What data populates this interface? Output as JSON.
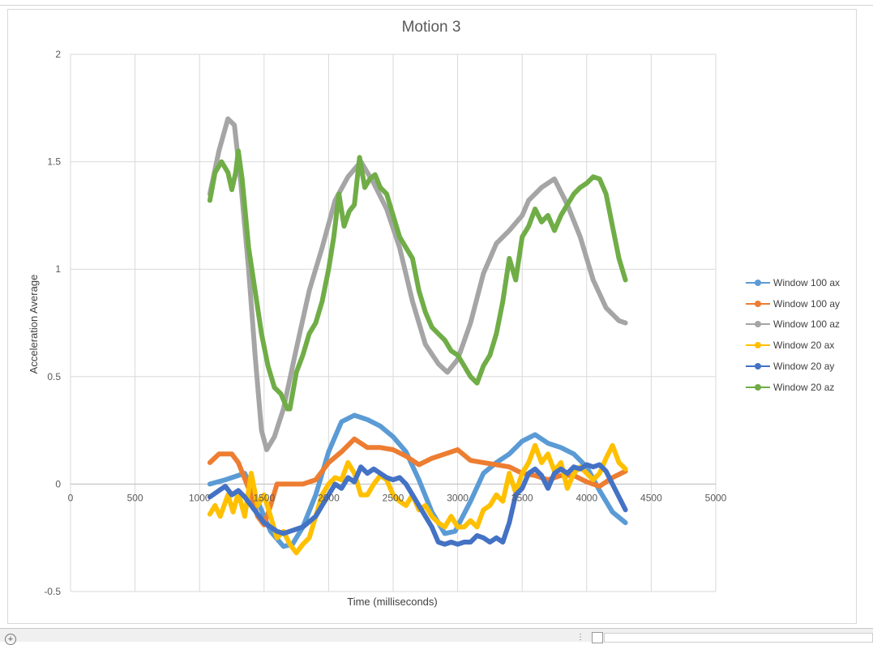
{
  "chart_data": {
    "type": "scatter",
    "title": "Motion 3",
    "xlabel": "Time (milliseconds)",
    "ylabel": "Acceleration Average",
    "xlim": [
      0,
      5000
    ],
    "ylim": [
      -0.5,
      2
    ],
    "x_ticks": [
      "0",
      "500",
      "1000",
      "1500",
      "2000",
      "2500",
      "3000",
      "3500",
      "4000",
      "4500",
      "5000"
    ],
    "y_ticks": [
      "-0.5",
      "0",
      "0.5",
      "1",
      "1.5",
      "2"
    ],
    "grid": true,
    "legend_position": "right",
    "series": [
      {
        "name": "Window 100 ax",
        "color": "#5b9bd5",
        "points": [
          [
            1080,
            0
          ],
          [
            1200,
            0.02
          ],
          [
            1350,
            0.05
          ],
          [
            1450,
            -0.08
          ],
          [
            1550,
            -0.22
          ],
          [
            1650,
            -0.29
          ],
          [
            1720,
            -0.28
          ],
          [
            1800,
            -0.2
          ],
          [
            1900,
            -0.05
          ],
          [
            2000,
            0.15
          ],
          [
            2100,
            0.29
          ],
          [
            2200,
            0.32
          ],
          [
            2300,
            0.3
          ],
          [
            2400,
            0.27
          ],
          [
            2500,
            0.22
          ],
          [
            2600,
            0.15
          ],
          [
            2700,
            0.02
          ],
          [
            2800,
            -0.13
          ],
          [
            2900,
            -0.23
          ],
          [
            2980,
            -0.22
          ],
          [
            3100,
            -0.08
          ],
          [
            3200,
            0.05
          ],
          [
            3300,
            0.1
          ],
          [
            3400,
            0.14
          ],
          [
            3500,
            0.2
          ],
          [
            3600,
            0.23
          ],
          [
            3700,
            0.19
          ],
          [
            3800,
            0.17
          ],
          [
            3900,
            0.14
          ],
          [
            4000,
            0.08
          ],
          [
            4100,
            -0.03
          ],
          [
            4200,
            -0.13
          ],
          [
            4300,
            -0.18
          ]
        ]
      },
      {
        "name": "Window 100 ay",
        "color": "#ed7d31",
        "points": [
          [
            1080,
            0.1
          ],
          [
            1150,
            0.14
          ],
          [
            1250,
            0.14
          ],
          [
            1300,
            0.1
          ],
          [
            1400,
            -0.05
          ],
          [
            1450,
            -0.15
          ],
          [
            1500,
            -0.19
          ],
          [
            1550,
            -0.1
          ],
          [
            1600,
            0
          ],
          [
            1700,
            0
          ],
          [
            1800,
            0
          ],
          [
            1900,
            0.02
          ],
          [
            2000,
            0.1
          ],
          [
            2100,
            0.15
          ],
          [
            2200,
            0.21
          ],
          [
            2300,
            0.17
          ],
          [
            2400,
            0.17
          ],
          [
            2500,
            0.16
          ],
          [
            2600,
            0.13
          ],
          [
            2700,
            0.09
          ],
          [
            2800,
            0.12
          ],
          [
            2900,
            0.14
          ],
          [
            3000,
            0.16
          ],
          [
            3100,
            0.11
          ],
          [
            3200,
            0.1
          ],
          [
            3300,
            0.09
          ],
          [
            3400,
            0.08
          ],
          [
            3500,
            0.05
          ],
          [
            3600,
            0.04
          ],
          [
            3700,
            0.02
          ],
          [
            3800,
            0.04
          ],
          [
            3900,
            0.04
          ],
          [
            4000,
            0.01
          ],
          [
            4100,
            -0.01
          ],
          [
            4200,
            0.03
          ],
          [
            4300,
            0.06
          ]
        ]
      },
      {
        "name": "Window 100 az",
        "color": "#a5a5a5",
        "points": [
          [
            1080,
            1.35
          ],
          [
            1150,
            1.55
          ],
          [
            1220,
            1.7
          ],
          [
            1270,
            1.67
          ],
          [
            1320,
            1.4
          ],
          [
            1380,
            1.0
          ],
          [
            1430,
            0.6
          ],
          [
            1480,
            0.25
          ],
          [
            1520,
            0.16
          ],
          [
            1580,
            0.22
          ],
          [
            1650,
            0.35
          ],
          [
            1750,
            0.63
          ],
          [
            1850,
            0.9
          ],
          [
            1950,
            1.1
          ],
          [
            2050,
            1.32
          ],
          [
            2150,
            1.43
          ],
          [
            2250,
            1.5
          ],
          [
            2350,
            1.4
          ],
          [
            2450,
            1.28
          ],
          [
            2550,
            1.1
          ],
          [
            2650,
            0.85
          ],
          [
            2750,
            0.65
          ],
          [
            2850,
            0.56
          ],
          [
            2920,
            0.52
          ],
          [
            3000,
            0.58
          ],
          [
            3100,
            0.75
          ],
          [
            3200,
            0.98
          ],
          [
            3300,
            1.12
          ],
          [
            3400,
            1.18
          ],
          [
            3500,
            1.25
          ],
          [
            3550,
            1.32
          ],
          [
            3650,
            1.38
          ],
          [
            3750,
            1.42
          ],
          [
            3850,
            1.3
          ],
          [
            3950,
            1.15
          ],
          [
            4050,
            0.95
          ],
          [
            4150,
            0.82
          ],
          [
            4250,
            0.76
          ],
          [
            4300,
            0.75
          ]
        ]
      },
      {
        "name": "Window 20 ax",
        "color": "#ffc000",
        "points": [
          [
            1080,
            -0.14
          ],
          [
            1120,
            -0.1
          ],
          [
            1160,
            -0.15
          ],
          [
            1220,
            -0.05
          ],
          [
            1260,
            -0.13
          ],
          [
            1300,
            -0.04
          ],
          [
            1350,
            -0.15
          ],
          [
            1400,
            0.05
          ],
          [
            1450,
            -0.1
          ],
          [
            1500,
            -0.05
          ],
          [
            1550,
            -0.15
          ],
          [
            1600,
            -0.25
          ],
          [
            1650,
            -0.22
          ],
          [
            1700,
            -0.28
          ],
          [
            1750,
            -0.32
          ],
          [
            1800,
            -0.28
          ],
          [
            1850,
            -0.25
          ],
          [
            1900,
            -0.15
          ],
          [
            1950,
            -0.05
          ],
          [
            2000,
            0
          ],
          [
            2050,
            0.03
          ],
          [
            2100,
            0.02
          ],
          [
            2150,
            0.1
          ],
          [
            2200,
            0.05
          ],
          [
            2250,
            -0.05
          ],
          [
            2300,
            -0.05
          ],
          [
            2350,
            0
          ],
          [
            2400,
            0.04
          ],
          [
            2450,
            0.02
          ],
          [
            2500,
            -0.05
          ],
          [
            2550,
            -0.08
          ],
          [
            2600,
            -0.1
          ],
          [
            2650,
            -0.05
          ],
          [
            2700,
            -0.12
          ],
          [
            2750,
            -0.1
          ],
          [
            2800,
            -0.15
          ],
          [
            2850,
            -0.18
          ],
          [
            2900,
            -0.2
          ],
          [
            2950,
            -0.15
          ],
          [
            3000,
            -0.2
          ],
          [
            3050,
            -0.2
          ],
          [
            3100,
            -0.17
          ],
          [
            3150,
            -0.2
          ],
          [
            3200,
            -0.12
          ],
          [
            3250,
            -0.1
          ],
          [
            3300,
            -0.05
          ],
          [
            3350,
            -0.08
          ],
          [
            3400,
            0.05
          ],
          [
            3450,
            -0.04
          ],
          [
            3500,
            0.05
          ],
          [
            3550,
            0.1
          ],
          [
            3600,
            0.18
          ],
          [
            3650,
            0.1
          ],
          [
            3700,
            0.14
          ],
          [
            3750,
            0.06
          ],
          [
            3800,
            0.1
          ],
          [
            3850,
            -0.02
          ],
          [
            3900,
            0.05
          ],
          [
            3950,
            0.08
          ],
          [
            4000,
            0.05
          ],
          [
            4050,
            0.02
          ],
          [
            4100,
            0.05
          ],
          [
            4150,
            0.12
          ],
          [
            4200,
            0.18
          ],
          [
            4250,
            0.1
          ],
          [
            4300,
            0.07
          ]
        ]
      },
      {
        "name": "Window 20 ay",
        "color": "#4472c4",
        "points": [
          [
            1080,
            -0.06
          ],
          [
            1150,
            -0.03
          ],
          [
            1200,
            -0.01
          ],
          [
            1250,
            -0.05
          ],
          [
            1300,
            -0.03
          ],
          [
            1350,
            -0.06
          ],
          [
            1400,
            -0.1
          ],
          [
            1450,
            -0.14
          ],
          [
            1500,
            -0.18
          ],
          [
            1550,
            -0.2
          ],
          [
            1600,
            -0.22
          ],
          [
            1650,
            -0.23
          ],
          [
            1700,
            -0.22
          ],
          [
            1800,
            -0.2
          ],
          [
            1900,
            -0.15
          ],
          [
            1950,
            -0.1
          ],
          [
            2000,
            -0.05
          ],
          [
            2050,
            0
          ],
          [
            2100,
            -0.02
          ],
          [
            2150,
            0.03
          ],
          [
            2200,
            0.01
          ],
          [
            2250,
            0.08
          ],
          [
            2300,
            0.05
          ],
          [
            2350,
            0.07
          ],
          [
            2400,
            0.05
          ],
          [
            2450,
            0.03
          ],
          [
            2500,
            0.02
          ],
          [
            2550,
            0.03
          ],
          [
            2600,
            0
          ],
          [
            2650,
            -0.05
          ],
          [
            2700,
            -0.1
          ],
          [
            2750,
            -0.15
          ],
          [
            2800,
            -0.2
          ],
          [
            2850,
            -0.27
          ],
          [
            2900,
            -0.28
          ],
          [
            2950,
            -0.27
          ],
          [
            3000,
            -0.28
          ],
          [
            3050,
            -0.27
          ],
          [
            3100,
            -0.27
          ],
          [
            3150,
            -0.24
          ],
          [
            3200,
            -0.25
          ],
          [
            3250,
            -0.27
          ],
          [
            3300,
            -0.25
          ],
          [
            3350,
            -0.27
          ],
          [
            3400,
            -0.18
          ],
          [
            3450,
            -0.05
          ],
          [
            3500,
            -0.02
          ],
          [
            3550,
            0.05
          ],
          [
            3600,
            0.07
          ],
          [
            3650,
            0.04
          ],
          [
            3700,
            -0.02
          ],
          [
            3750,
            0.05
          ],
          [
            3800,
            0.07
          ],
          [
            3850,
            0.05
          ],
          [
            3900,
            0.08
          ],
          [
            3950,
            0.07
          ],
          [
            4000,
            0.09
          ],
          [
            4050,
            0.08
          ],
          [
            4100,
            0.09
          ],
          [
            4150,
            0.06
          ],
          [
            4200,
            0
          ],
          [
            4250,
            -0.06
          ],
          [
            4300,
            -0.12
          ]
        ]
      },
      {
        "name": "Window 20 az",
        "color": "#70ad47",
        "points": [
          [
            1080,
            1.32
          ],
          [
            1120,
            1.45
          ],
          [
            1170,
            1.5
          ],
          [
            1220,
            1.45
          ],
          [
            1250,
            1.37
          ],
          [
            1280,
            1.45
          ],
          [
            1300,
            1.55
          ],
          [
            1330,
            1.42
          ],
          [
            1380,
            1.1
          ],
          [
            1430,
            0.9
          ],
          [
            1480,
            0.7
          ],
          [
            1530,
            0.55
          ],
          [
            1580,
            0.45
          ],
          [
            1630,
            0.42
          ],
          [
            1680,
            0.35
          ],
          [
            1700,
            0.35
          ],
          [
            1750,
            0.52
          ],
          [
            1800,
            0.6
          ],
          [
            1850,
            0.7
          ],
          [
            1900,
            0.75
          ],
          [
            1950,
            0.85
          ],
          [
            2000,
            1.0
          ],
          [
            2040,
            1.15
          ],
          [
            2080,
            1.35
          ],
          [
            2120,
            1.2
          ],
          [
            2160,
            1.27
          ],
          [
            2200,
            1.3
          ],
          [
            2240,
            1.52
          ],
          [
            2280,
            1.38
          ],
          [
            2320,
            1.42
          ],
          [
            2360,
            1.44
          ],
          [
            2400,
            1.38
          ],
          [
            2450,
            1.35
          ],
          [
            2500,
            1.25
          ],
          [
            2550,
            1.15
          ],
          [
            2600,
            1.1
          ],
          [
            2650,
            1.05
          ],
          [
            2700,
            0.9
          ],
          [
            2750,
            0.8
          ],
          [
            2800,
            0.73
          ],
          [
            2850,
            0.7
          ],
          [
            2900,
            0.67
          ],
          [
            2950,
            0.62
          ],
          [
            3000,
            0.6
          ],
          [
            3050,
            0.55
          ],
          [
            3100,
            0.5
          ],
          [
            3150,
            0.47
          ],
          [
            3200,
            0.55
          ],
          [
            3250,
            0.6
          ],
          [
            3300,
            0.7
          ],
          [
            3350,
            0.85
          ],
          [
            3400,
            1.05
          ],
          [
            3450,
            0.95
          ],
          [
            3500,
            1.15
          ],
          [
            3550,
            1.2
          ],
          [
            3600,
            1.28
          ],
          [
            3650,
            1.22
          ],
          [
            3700,
            1.25
          ],
          [
            3750,
            1.18
          ],
          [
            3800,
            1.25
          ],
          [
            3850,
            1.3
          ],
          [
            3900,
            1.35
          ],
          [
            3950,
            1.38
          ],
          [
            4000,
            1.4
          ],
          [
            4050,
            1.43
          ],
          [
            4100,
            1.42
          ],
          [
            4150,
            1.35
          ],
          [
            4200,
            1.2
          ],
          [
            4250,
            1.05
          ],
          [
            4300,
            0.95
          ]
        ]
      }
    ]
  }
}
